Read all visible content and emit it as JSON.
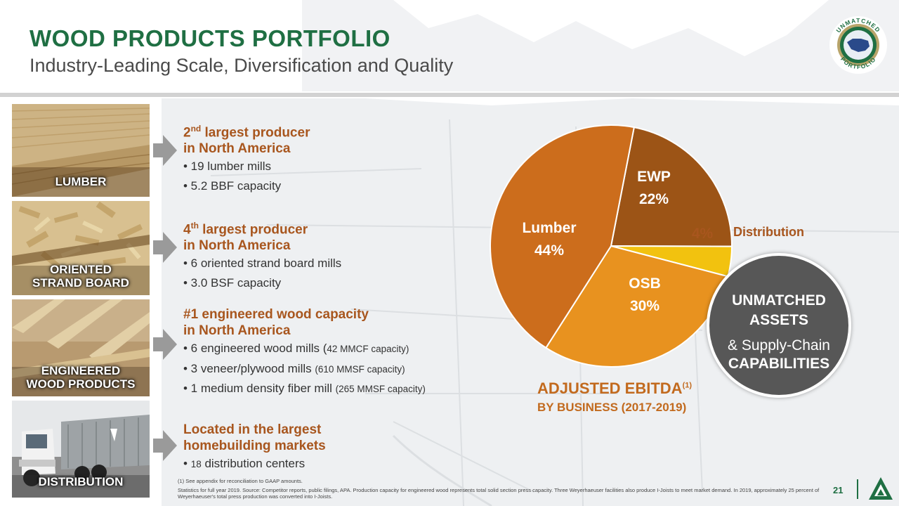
{
  "header": {
    "title": "WOOD PRODUCTS PORTFOLIO",
    "subtitle": "Industry-Leading Scale, Diversification and Quality",
    "seal_top_text": "UNMATCHED",
    "seal_bottom_text": "PORTFOLIO"
  },
  "segments": [
    {
      "caption": "LUMBER",
      "heading_num": "2",
      "heading_sup": "nd",
      "heading_rest": " largest producer",
      "heading_line2": "in North America",
      "bullets": [
        "• 19 lumber mills",
        "• 5.2 BBF capacity"
      ]
    },
    {
      "caption_line1": "ORIENTED",
      "caption_line2": "STRAND BOARD",
      "heading_num": "4",
      "heading_sup": "th",
      "heading_rest": " largest producer",
      "heading_line2": "in North America",
      "bullets": [
        "• 6 oriented strand board mills",
        "• 3.0 BSF capacity"
      ]
    },
    {
      "caption_line1": "ENGINEERED",
      "caption_line2": "WOOD PRODUCTS",
      "heading_line1": "#1 engineered wood capacity",
      "heading_line2": "in North America",
      "bullets": [
        {
          "main": "• 6 engineered wood mills (",
          "detail": "42 MMCF capacity)"
        },
        {
          "main": "• 3 veneer/plywood mills ",
          "detail": "(610 MMSF capacity)"
        },
        {
          "main": "• 1 medium density fiber mill ",
          "detail": "(265 MMSF capacity)"
        }
      ]
    },
    {
      "caption": "DISTRIBUTION",
      "heading_line1": "Located in the largest",
      "heading_line2": "homebuilding markets",
      "bullets": [
        {
          "pre": "• ",
          "small": "18",
          "main": " distribution centers"
        }
      ]
    }
  ],
  "chart_data": {
    "type": "pie",
    "title": "ADJUSTED EBITDA",
    "title_sup": "(1)",
    "subtitle": "BY BUSINESS (2017-2019)",
    "start_angle_deg": 79,
    "slices": [
      {
        "name": "EWP",
        "value": 22,
        "label": "22%",
        "color": "#9c5416"
      },
      {
        "name": "Distribution",
        "value": 4,
        "label": "4%",
        "color": "#f2c20f"
      },
      {
        "name": "OSB",
        "value": 30,
        "label": "30%",
        "color": "#e8921f"
      },
      {
        "name": "Lumber",
        "value": 44,
        "label": "44%",
        "color": "#cc6d1c"
      }
    ]
  },
  "callout": {
    "line1": "UNMATCHED",
    "line2": "ASSETS",
    "line3": "& Supply-Chain",
    "line4": "CAPABILITIES"
  },
  "footer": {
    "note1": "(1) See appendix  for reconciliation  to GAAP amounts.",
    "note2": "Statistics for full year 2019. Source: Competitor  reports, public filings, APA. Production  capacity for engineered  wood represents total solid section press capacity. Three Weyerhaeuser facilities also produce I-Joists to meet market demand. In 2019, approximately  25 percent of Weyerhaeuser's total press production  was converted  into I-Joists.",
    "page_number": "21"
  },
  "colors": {
    "brand_green": "#1f6f43",
    "accent_brown": "#a8561e",
    "callout_gray": "#575757"
  }
}
